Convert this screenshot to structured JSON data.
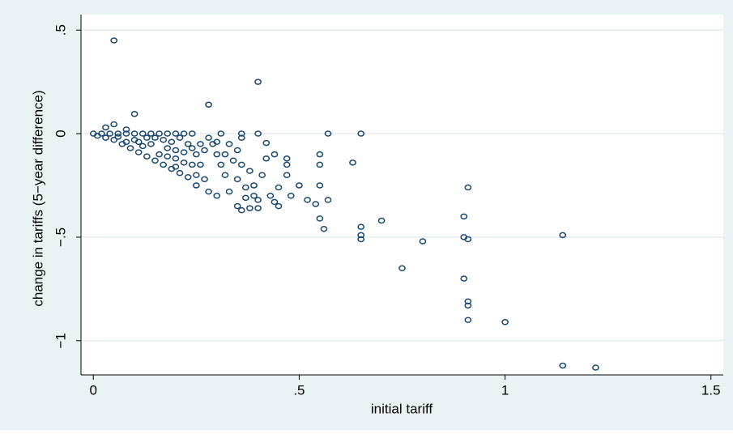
{
  "chart_data": {
    "type": "scatter",
    "x_label": "initial tariff",
    "y_label": "change in tariffs (5−year difference)",
    "xlim": [
      -0.03,
      1.53
    ],
    "ylim": [
      -1.165,
      0.575
    ],
    "xticks": [
      0,
      {
        "value": 0.5,
        "label": ".5"
      },
      1,
      1.5
    ],
    "yticks": [
      {
        "value": 0.5,
        "label": ".5"
      },
      0,
      {
        "value": -0.5,
        "label": "−.5"
      },
      {
        "value": -1,
        "label": "−1"
      }
    ],
    "grid": true,
    "color": "#1a476f",
    "x": [
      0.05,
      0.4,
      0.28,
      0.1,
      0.05,
      0.03,
      0.08,
      0.57,
      0.65,
      0.4,
      0.36,
      0.31,
      0.42,
      0.63,
      0.55,
      0.55,
      0.55,
      0.57,
      0.56,
      0.55,
      0.65,
      0.65,
      0.65,
      0.7,
      0.75,
      0.8,
      0.9,
      0.9,
      0.91,
      0.91,
      0.9,
      0.91,
      0.91,
      0.91,
      1.0,
      1.14,
      1.14,
      1.22,
      0.52,
      0.5,
      0.54,
      0.47,
      0.47,
      0.47,
      0.48,
      0.45,
      0.44,
      0.43,
      0.44,
      0.45,
      0.4,
      0.4,
      0.39,
      0.39,
      0.38,
      0.36,
      0.35,
      0.37,
      0.37,
      0.33,
      0.3,
      0.28,
      0.38,
      0.36,
      0.35,
      0.32,
      0.31,
      0.3,
      0.29,
      0.33,
      0.35,
      0.42,
      0.41,
      0.25,
      0.25,
      0.27,
      0.26,
      0.25,
      0.24,
      0.22,
      0.2,
      0.18,
      0.16,
      0.14,
      0.12,
      0.1,
      0.08,
      0.06,
      0.04,
      0.02,
      0.0,
      0.01,
      0.03,
      0.05,
      0.07,
      0.09,
      0.11,
      0.13,
      0.15,
      0.17,
      0.19,
      0.21,
      0.23,
      0.06,
      0.1,
      0.14,
      0.18,
      0.22,
      0.12,
      0.16,
      0.2,
      0.24,
      0.08,
      0.15,
      0.19,
      0.23,
      0.21,
      0.17,
      0.13,
      0.11,
      0.2,
      0.22,
      0.18,
      0.28,
      0.27,
      0.3,
      0.32,
      0.34,
      0.36,
      0.26,
      0.2,
      0.24
    ],
    "y": [
      0.45,
      0.25,
      0.14,
      0.095,
      0.045,
      0.03,
      0.02,
      0,
      0,
      0,
      0,
      0,
      -0.045,
      -0.14,
      -0.1,
      -0.15,
      -0.25,
      -0.32,
      -0.46,
      -0.41,
      -0.45,
      -0.49,
      -0.51,
      -0.42,
      -0.65,
      -0.52,
      -0.4,
      -0.5,
      -0.51,
      -0.26,
      -0.7,
      -0.81,
      -0.83,
      -0.9,
      -0.91,
      -0.49,
      -1.12,
      -1.13,
      -0.32,
      -0.25,
      -0.34,
      -0.12,
      -0.15,
      -0.2,
      -0.3,
      -0.35,
      -0.33,
      -0.3,
      -0.1,
      -0.26,
      -0.36,
      -0.32,
      -0.3,
      -0.25,
      -0.36,
      -0.37,
      -0.35,
      -0.31,
      -0.26,
      -0.28,
      -0.3,
      -0.28,
      -0.18,
      -0.15,
      -0.22,
      -0.2,
      -0.15,
      -0.1,
      -0.05,
      -0.05,
      -0.08,
      -0.12,
      -0.2,
      -0.25,
      -0.2,
      -0.22,
      -0.15,
      -0.1,
      0,
      0,
      0,
      0,
      0,
      0,
      0,
      0,
      0,
      0,
      0,
      0,
      0,
      -0.01,
      -0.02,
      -0.03,
      -0.05,
      -0.07,
      -0.09,
      -0.11,
      -0.13,
      -0.15,
      -0.17,
      -0.19,
      -0.21,
      -0.015,
      -0.03,
      -0.05,
      -0.07,
      -0.09,
      -0.06,
      -0.1,
      -0.12,
      -0.15,
      -0.04,
      -0.02,
      -0.04,
      -0.05,
      -0.02,
      -0.03,
      -0.02,
      -0.04,
      -0.08,
      -0.14,
      -0.11,
      -0.02,
      -0.08,
      -0.04,
      -0.1,
      -0.13,
      -0.02,
      -0.05,
      -0.16,
      -0.07
    ]
  }
}
